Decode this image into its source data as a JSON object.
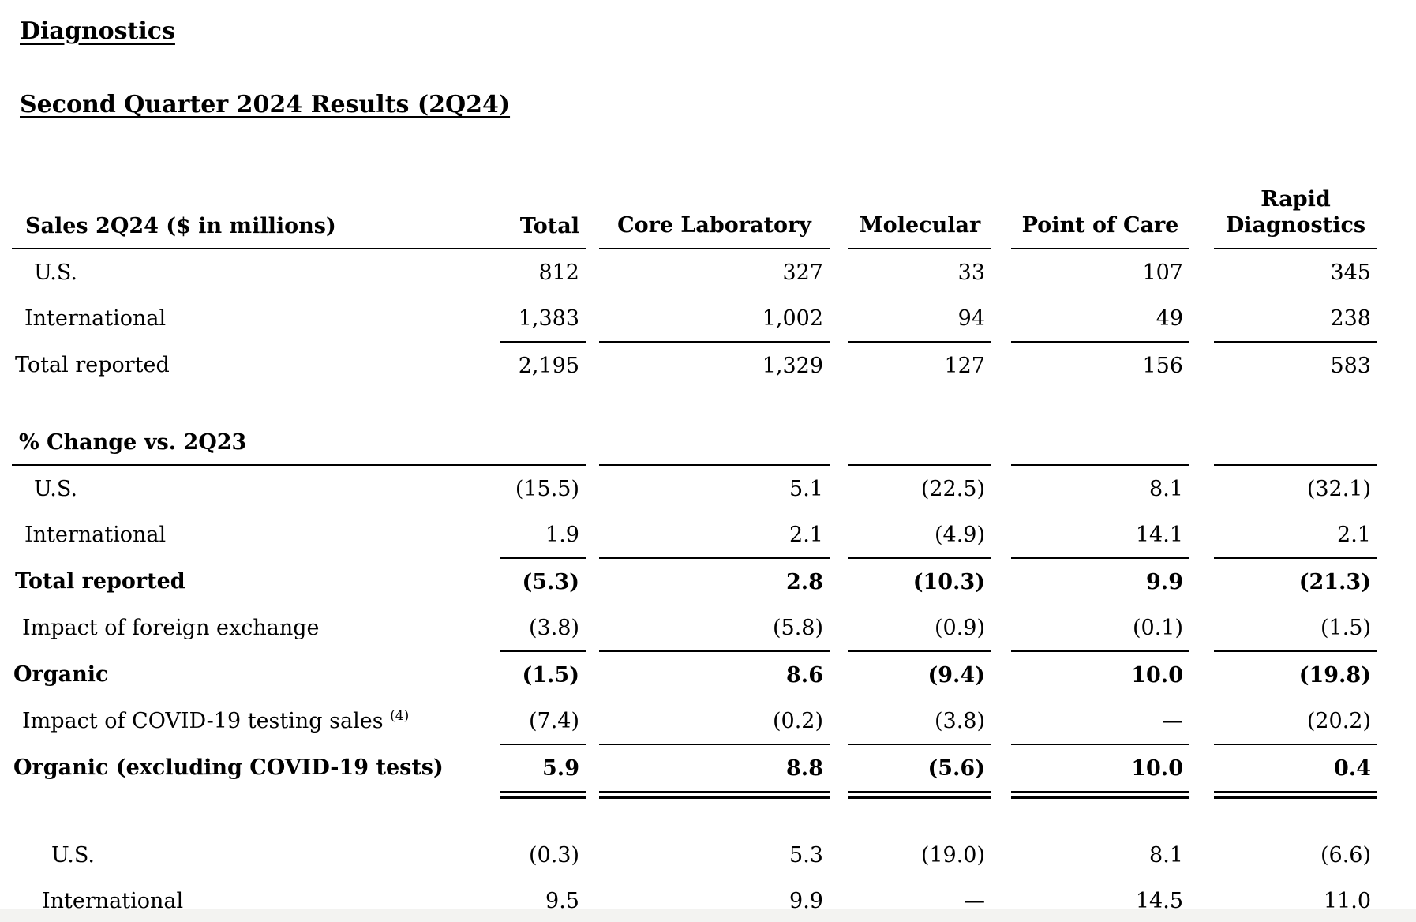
{
  "page": {
    "title": "Diagnostics",
    "subtitle": "Second Quarter 2024 Results (2Q24)"
  },
  "colors": {
    "text": "#000000",
    "background": "#ffffff",
    "bottom_strip": "#f3f3f1"
  },
  "table": {
    "header": {
      "label": "Sales 2Q24 ($ in millions)",
      "columns": [
        "Total",
        "Core Laboratory",
        "Molecular",
        "Point of Care",
        "Rapid Diagnostics"
      ]
    },
    "sales_rows": [
      {
        "label": "U.S.",
        "values": [
          "812",
          "327",
          "33",
          "107",
          "345"
        ]
      },
      {
        "label": "International",
        "values": [
          "1,383",
          "1,002",
          "94",
          "49",
          "238"
        ]
      },
      {
        "label": "Total reported",
        "values": [
          "2,195",
          "1,329",
          "127",
          "156",
          "583"
        ]
      }
    ],
    "pct_section_header": "% Change vs. 2Q23",
    "pct_rows": [
      {
        "label": "U.S.",
        "values": [
          "(15.5)",
          "5.1",
          "(22.5)",
          "8.1",
          "(32.1)"
        ]
      },
      {
        "label": "International",
        "values": [
          "1.9",
          "2.1",
          "(4.9)",
          "14.1",
          "2.1"
        ]
      },
      {
        "label": "Total reported",
        "values": [
          "(5.3)",
          "2.8",
          "(10.3)",
          "9.9",
          "(21.3)"
        ]
      },
      {
        "label": "Impact of foreign exchange",
        "values": [
          "(3.8)",
          "(5.8)",
          "(0.9)",
          "(0.1)",
          "(1.5)"
        ]
      },
      {
        "label": "Organic",
        "values": [
          "(1.5)",
          "8.6",
          "(9.4)",
          "10.0",
          "(19.8)"
        ]
      },
      {
        "label": "Impact of COVID-19 testing sales",
        "footnote_marker": "(4)",
        "values": [
          "(7.4)",
          "(0.2)",
          "(3.8)",
          "—",
          "(20.2)"
        ]
      },
      {
        "label": "Organic (excluding COVID-19 tests)",
        "values": [
          "5.9",
          "8.8",
          "(5.6)",
          "10.0",
          "0.4"
        ]
      }
    ],
    "bottom_rows": [
      {
        "label": "U.S.",
        "values": [
          "(0.3)",
          "5.3",
          "(19.0)",
          "8.1",
          "(6.6)"
        ]
      },
      {
        "label": "International",
        "values": [
          "9.5",
          "9.9",
          "—",
          "14.5",
          "11.0"
        ]
      }
    ]
  }
}
